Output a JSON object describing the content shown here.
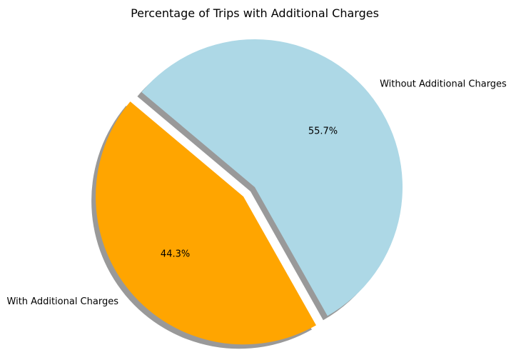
{
  "chart_data": {
    "type": "pie",
    "title": "Percentage of Trips with Additional Charges",
    "labels": [
      "With Additional Charges",
      "Without Additional Charges"
    ],
    "values": [
      44.3,
      55.7
    ],
    "percent_labels": [
      "44.3%",
      "55.7%"
    ],
    "colors": [
      "#FFA500",
      "#ADD8E6"
    ],
    "explode": [
      0.1,
      0
    ],
    "start_angle_degrees": 140,
    "shadow": true
  }
}
